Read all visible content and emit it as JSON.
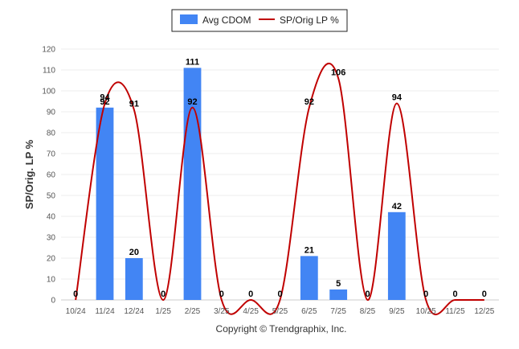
{
  "chart_data": {
    "type": "bar",
    "categories": [
      "10/24",
      "11/24",
      "12/24",
      "1/25",
      "2/25",
      "3/25",
      "4/25",
      "5/25",
      "6/25",
      "7/25",
      "8/25",
      "9/25",
      "10/25",
      "11/25",
      "12/25"
    ],
    "series": [
      {
        "name": "Avg CDOM",
        "kind": "bar",
        "color": "#4285f4",
        "values": [
          0,
          92,
          20,
          0,
          111,
          0,
          0,
          0,
          21,
          5,
          0,
          42,
          0,
          0,
          0
        ]
      },
      {
        "name": "SP/Orig LP %",
        "kind": "line",
        "color": "#c00000",
        "values": [
          0,
          94,
          91,
          0,
          92,
          0,
          0,
          0,
          92,
          106,
          0,
          94,
          0,
          0,
          0
        ]
      }
    ],
    "yticks": [
      0,
      10,
      20,
      30,
      40,
      50,
      60,
      70,
      80,
      90,
      100,
      110,
      120
    ],
    "ylim": [
      0,
      120
    ],
    "ylabel": "SP/Orig. LP %",
    "xlabel": "",
    "title": "",
    "grid": true,
    "legend_position": "top-center"
  },
  "footer": {
    "copyright": "Copyright © Trendgraphix, Inc."
  }
}
